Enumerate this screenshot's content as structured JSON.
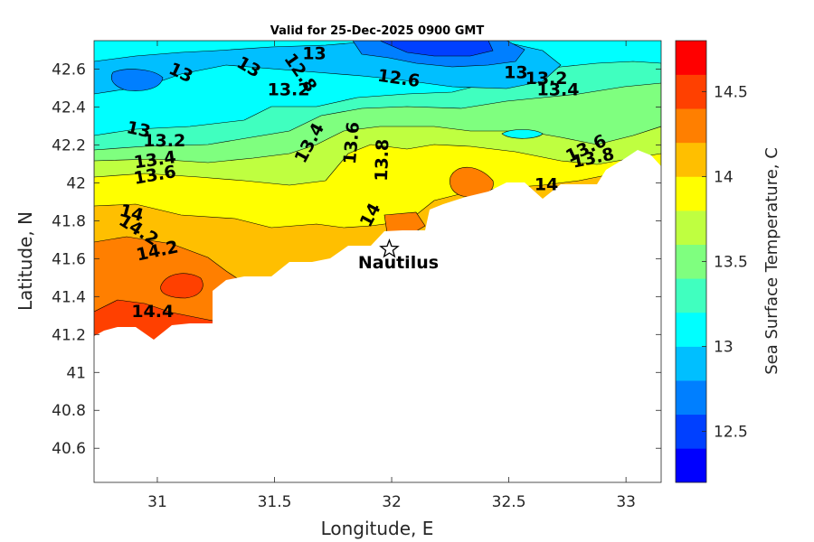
{
  "chart_data": {
    "type": "heatmap",
    "title": "Valid for 25-Dec-2025 0900 GMT",
    "xlabel": "Longitude, E",
    "ylabel": "Latitude, N",
    "xlim": [
      30.73,
      33.15
    ],
    "ylim": [
      40.42,
      42.75
    ],
    "xticks": [
      31,
      31.5,
      32,
      32.5,
      33
    ],
    "xtick_labels": [
      "31",
      "31.5",
      "32",
      "32.5",
      "33"
    ],
    "yticks": [
      40.6,
      40.8,
      41,
      41.2,
      41.4,
      41.6,
      41.8,
      42,
      42.2,
      42.4,
      42.6
    ],
    "ytick_labels": [
      "40.6",
      "40.8",
      "41",
      "41.2",
      "41.4",
      "41.6",
      "41.8",
      "42",
      "42.2",
      "42.4",
      "42.6"
    ],
    "colorbar": {
      "label": "Sea Surface Temperature, C",
      "range": [
        12.2,
        14.8
      ],
      "ticks": [
        12.5,
        13,
        13.5,
        14,
        14.5
      ],
      "tick_labels": [
        "12.5",
        "13",
        "13.5",
        "14",
        "14.5"
      ],
      "colors": [
        "#0000ff",
        "#0040ff",
        "#007fff",
        "#00bfff",
        "#00ffff",
        "#40ffbf",
        "#7fff7f",
        "#bfff40",
        "#ffff00",
        "#ffbf00",
        "#ff7f00",
        "#ff4000",
        "#ff0000"
      ]
    },
    "contour_labels": [
      {
        "text": "13",
        "lon": 31.67,
        "lat": 42.68,
        "rot": 0
      },
      {
        "text": "13",
        "lon": 31.39,
        "lat": 42.61,
        "rot": 30
      },
      {
        "text": "13",
        "lon": 31.1,
        "lat": 42.58,
        "rot": 25
      },
      {
        "text": "12.8",
        "lon": 31.61,
        "lat": 42.58,
        "rot": 55
      },
      {
        "text": "12.6",
        "lon": 32.03,
        "lat": 42.55,
        "rot": 8
      },
      {
        "text": "13.2",
        "lon": 31.56,
        "lat": 42.49,
        "rot": 0
      },
      {
        "text": "13",
        "lon": 32.53,
        "lat": 42.58,
        "rot": 0
      },
      {
        "text": "13.2",
        "lon": 32.66,
        "lat": 42.55,
        "rot": 0
      },
      {
        "text": "13.4",
        "lon": 32.71,
        "lat": 42.49,
        "rot": 0
      },
      {
        "text": "13",
        "lon": 30.92,
        "lat": 42.28,
        "rot": 12
      },
      {
        "text": "13.2",
        "lon": 31.03,
        "lat": 42.22,
        "rot": 0
      },
      {
        "text": "13.4",
        "lon": 31.65,
        "lat": 42.21,
        "rot": -62
      },
      {
        "text": "13.6",
        "lon": 31.83,
        "lat": 42.21,
        "rot": -85
      },
      {
        "text": "13.4",
        "lon": 30.99,
        "lat": 42.12,
        "rot": -8
      },
      {
        "text": "13.6",
        "lon": 30.99,
        "lat": 42.04,
        "rot": -10
      },
      {
        "text": "13.8",
        "lon": 31.96,
        "lat": 42.12,
        "rot": -88
      },
      {
        "text": "13.6",
        "lon": 32.83,
        "lat": 42.18,
        "rot": -25
      },
      {
        "text": "13.8",
        "lon": 32.86,
        "lat": 42.13,
        "rot": -12
      },
      {
        "text": "14",
        "lon": 32.66,
        "lat": 41.99,
        "rot": 0
      },
      {
        "text": "14",
        "lon": 31.91,
        "lat": 41.83,
        "rot": -62
      },
      {
        "text": "14",
        "lon": 30.89,
        "lat": 41.84,
        "rot": 15
      },
      {
        "text": "14.2",
        "lon": 30.92,
        "lat": 41.75,
        "rot": 32
      },
      {
        "text": "14.2",
        "lon": 31.0,
        "lat": 41.64,
        "rot": -12
      },
      {
        "text": "14.4",
        "lon": 30.98,
        "lat": 41.32,
        "rot": 0
      }
    ],
    "station": {
      "name": "Nautilus",
      "lon": 31.99,
      "lat": 41.65
    }
  }
}
